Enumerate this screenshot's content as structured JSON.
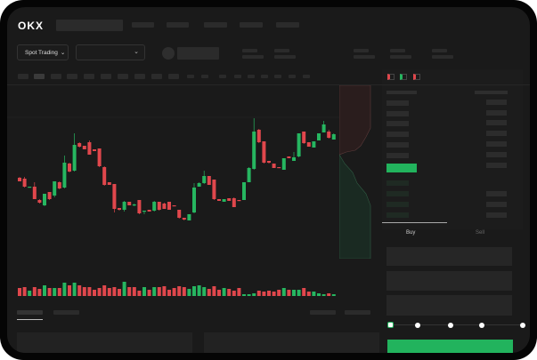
{
  "header": {
    "logo": "OKX"
  },
  "toolbar": {
    "market_select": "Spot Trading",
    "pair_select": ""
  },
  "order_panel": {
    "tabs": [
      "Buy",
      "Sell"
    ],
    "active_tab": "Buy",
    "slider_percent": 0,
    "slider_stops": [
      0,
      25,
      50,
      75,
      100
    ]
  },
  "colors": {
    "up": "#26b660",
    "down": "#e0474c",
    "accent": "#22b35d",
    "background": "#1a1a1a"
  },
  "icons": [
    "okx-logo",
    "chevron-down-icon",
    "orderbook-both-icon",
    "orderbook-bids-icon",
    "orderbook-asks-icon"
  ],
  "chart_data": {
    "type": "candlestick",
    "title": "",
    "grid": false,
    "candles": [
      [
        118,
        114,
        119,
        114
      ],
      [
        117,
        108,
        119,
        107
      ],
      [
        107,
        108,
        108,
        107
      ],
      [
        108,
        94,
        113,
        94
      ],
      [
        93,
        90,
        94,
        89
      ],
      [
        87,
        100,
        100,
        86
      ],
      [
        102,
        94,
        102,
        93
      ],
      [
        98,
        114,
        114,
        96
      ],
      [
        113,
        106,
        114,
        105
      ],
      [
        107,
        135,
        143,
        106
      ],
      [
        134,
        125,
        135,
        124
      ],
      [
        126,
        155,
        168,
        125
      ],
      [
        157,
        153,
        158,
        152
      ],
      [
        154,
        150,
        154,
        150
      ],
      [
        158,
        144,
        160,
        144
      ],
      [
        150,
        148,
        150,
        148
      ],
      [
        151,
        131,
        151,
        130
      ],
      [
        130,
        110,
        131,
        109
      ],
      [
        113,
        110,
        113,
        110
      ],
      [
        111,
        83,
        111,
        79
      ],
      [
        84,
        82,
        84,
        81
      ],
      [
        82,
        91,
        92,
        80
      ],
      [
        91,
        87,
        91,
        87
      ],
      [
        87,
        88,
        89,
        86
      ],
      [
        93,
        78,
        93,
        77
      ],
      [
        80,
        81,
        81,
        77
      ],
      [
        82,
        80,
        82,
        80
      ],
      [
        81,
        91,
        92,
        80
      ],
      [
        91,
        82,
        91,
        81
      ],
      [
        89,
        83,
        90,
        83
      ],
      [
        91,
        82,
        91,
        82
      ],
      [
        87,
        86,
        87,
        86
      ],
      [
        82,
        73,
        82,
        72
      ],
      [
        73,
        71,
        73,
        70
      ],
      [
        70,
        77,
        77,
        70
      ],
      [
        79,
        107,
        112,
        78
      ],
      [
        108,
        112,
        113,
        108
      ],
      [
        112,
        120,
        126,
        111
      ],
      [
        120,
        110,
        120,
        110
      ],
      [
        116,
        94,
        116,
        93
      ],
      [
        94,
        92,
        94,
        92
      ],
      [
        91,
        94,
        94,
        91
      ],
      [
        95,
        92,
        95,
        92
      ],
      [
        95,
        85,
        96,
        85
      ],
      [
        93,
        92,
        93,
        92
      ],
      [
        93,
        113,
        113,
        93
      ],
      [
        113,
        129,
        130,
        113
      ],
      [
        128,
        170,
        185,
        127
      ],
      [
        172,
        158,
        173,
        157
      ],
      [
        159,
        135,
        159,
        134
      ],
      [
        137,
        135,
        137,
        134
      ],
      [
        134,
        129,
        134,
        129
      ],
      [
        130,
        129,
        130,
        129
      ],
      [
        127,
        140,
        140,
        127
      ],
      [
        142,
        140,
        142,
        140
      ],
      [
        137,
        141,
        147,
        137
      ],
      [
        142,
        168,
        168,
        141
      ],
      [
        170,
        157,
        170,
        156
      ],
      [
        158,
        153,
        158,
        153
      ],
      [
        152,
        159,
        159,
        152
      ],
      [
        160,
        168,
        168,
        160
      ],
      [
        169,
        178,
        182,
        169
      ],
      [
        170,
        163,
        172,
        162
      ],
      [
        161,
        167,
        168,
        161
      ]
    ],
    "volume": [
      9,
      10,
      6,
      10,
      8,
      12,
      9,
      9,
      9,
      15,
      12,
      15,
      12,
      10,
      10,
      7,
      9,
      12,
      9,
      10,
      8,
      16,
      10,
      10,
      6,
      10,
      7,
      10,
      10,
      11,
      7,
      9,
      11,
      10,
      8,
      11,
      12,
      10,
      8,
      11,
      7,
      9,
      8,
      6,
      9,
      2,
      2,
      3,
      6,
      5,
      6,
      5,
      7,
      9,
      7,
      7,
      7,
      9,
      5,
      5,
      3,
      2,
      3,
      2
    ],
    "volume_up": [
      0,
      0,
      1,
      0,
      0,
      1,
      0,
      1,
      0,
      1,
      0,
      1,
      0,
      0,
      0,
      0,
      0,
      0,
      0,
      0,
      0,
      1,
      0,
      0,
      0,
      1,
      0,
      1,
      0,
      0,
      0,
      0,
      0,
      0,
      1,
      1,
      1,
      1,
      0,
      0,
      0,
      1,
      0,
      0,
      0,
      1,
      1,
      1,
      0,
      0,
      0,
      0,
      0,
      1,
      0,
      1,
      1,
      0,
      0,
      1,
      1,
      1,
      0,
      1
    ]
  }
}
